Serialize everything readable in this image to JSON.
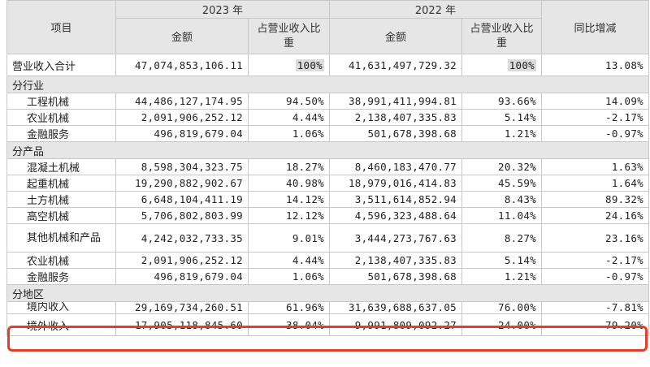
{
  "header": {
    "item": "项目",
    "year_a": "2023 年",
    "year_b": "2022 年",
    "yoy": "同比增减",
    "amount": "金额",
    "ratio": "占营业收入比重"
  },
  "total": {
    "label": "营业收入合计",
    "a_amt": "47,074,853,106.11",
    "a_pct": "100%",
    "b_amt": "41,631,497,729.32",
    "b_pct": "100%",
    "yoy": "13.08%"
  },
  "sections": {
    "industry": {
      "title": "分行业",
      "rows": [
        {
          "label": "工程机械",
          "a_amt": "44,486,127,174.95",
          "a_pct": "94.50%",
          "b_amt": "38,991,411,994.81",
          "b_pct": "93.66%",
          "yoy": "14.09%"
        },
        {
          "label": "农业机械",
          "a_amt": "2,091,906,252.12",
          "a_pct": "4.44%",
          "b_amt": "2,138,407,335.83",
          "b_pct": "5.14%",
          "yoy": "-2.17%"
        },
        {
          "label": "金融服务",
          "a_amt": "496,819,679.04",
          "a_pct": "1.06%",
          "b_amt": "501,678,398.68",
          "b_pct": "1.21%",
          "yoy": "-0.97%"
        }
      ]
    },
    "product": {
      "title": "分产品",
      "rows": [
        {
          "label": "混凝土机械",
          "a_amt": "8,598,304,323.75",
          "a_pct": "18.27%",
          "b_amt": "8,460,183,470.77",
          "b_pct": "20.32%",
          "yoy": "1.63%"
        },
        {
          "label": "起重机械",
          "a_amt": "19,290,882,902.67",
          "a_pct": "40.98%",
          "b_amt": "18,979,016,414.83",
          "b_pct": "45.59%",
          "yoy": "1.64%"
        },
        {
          "label": "土方机械",
          "a_amt": "6,648,104,411.19",
          "a_pct": "14.12%",
          "b_amt": "3,511,614,852.94",
          "b_pct": "8.43%",
          "yoy": "89.32%"
        },
        {
          "label": "高空机械",
          "a_amt": "5,706,802,803.99",
          "a_pct": "12.12%",
          "b_amt": "4,596,323,488.64",
          "b_pct": "11.04%",
          "yoy": "24.16%"
        },
        {
          "label": "其他机械和产品",
          "a_amt": "4,242,032,733.35",
          "a_pct": "9.01%",
          "b_amt": "3,444,273,767.63",
          "b_pct": "8.27%",
          "yoy": "23.16%"
        },
        {
          "label": "农业机械",
          "a_amt": "2,091,906,252.12",
          "a_pct": "4.44%",
          "b_amt": "2,138,407,335.83",
          "b_pct": "5.14%",
          "yoy": "-2.17%"
        },
        {
          "label": "金融服务",
          "a_amt": "496,819,679.04",
          "a_pct": "1.06%",
          "b_amt": "501,678,398.68",
          "b_pct": "1.21%",
          "yoy": "-0.97%"
        }
      ]
    },
    "region": {
      "title": "分地区",
      "rows": [
        {
          "label": "境内收入",
          "a_amt": "29,169,734,260.51",
          "a_pct": "61.96%",
          "b_amt": "31,639,688,637.05",
          "b_pct": "76.00%",
          "yoy": "-7.81%"
        },
        {
          "label": "境外收入",
          "a_amt": "17,905,118,845.60",
          "a_pct": "38.04%",
          "b_amt": "9,991,809,092.27",
          "b_pct": "24.00%",
          "yoy": "79.20%"
        }
      ]
    }
  },
  "highlight_color": "#e0402a"
}
